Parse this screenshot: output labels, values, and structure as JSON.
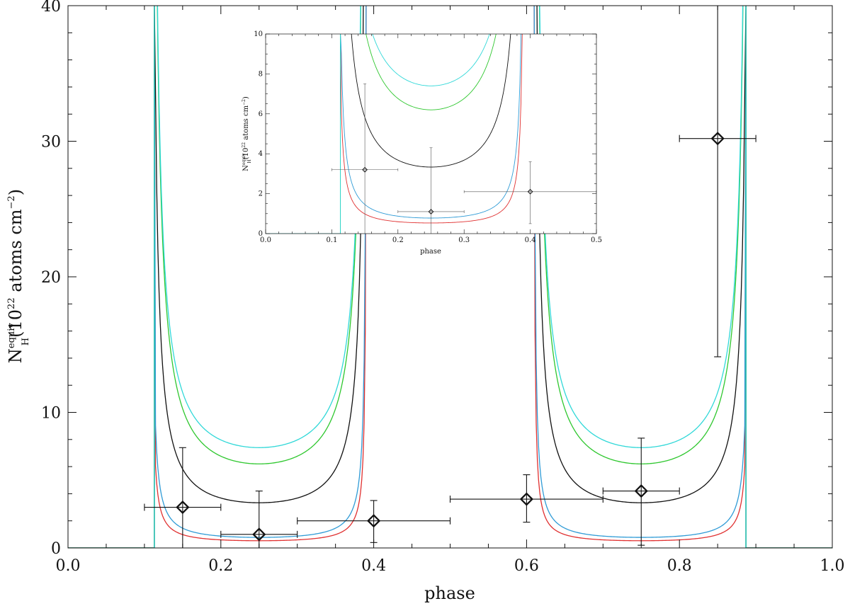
{
  "chart_data": [
    {
      "type": "line",
      "title": "",
      "xlabel": "phase",
      "ylabel_parts": {
        "base": "N",
        "sup": "equiv",
        "sub": "H",
        "text1": "(10",
        "exp": "22",
        "text2": " atoms cm",
        "exp2": "−2",
        "text3": ")"
      },
      "xlim": [
        0.0,
        1.0
      ],
      "ylim": [
        0,
        40
      ],
      "xticks": [
        "0.0",
        "0.2",
        "0.4",
        "0.6",
        "0.8",
        "1.0"
      ],
      "yticks": [
        "0",
        "10",
        "20",
        "30",
        "40"
      ],
      "grid": false,
      "series": [
        {
          "color": "#e03030",
          "base": 0.2,
          "amp": 0.2
        },
        {
          "color": "#2f9bd6",
          "base": 0.28,
          "amp": 0.3
        },
        {
          "color": "#111111",
          "base": 1.5,
          "amp": 1.1
        },
        {
          "color": "#2ec72e",
          "base": 3.2,
          "amp": 1.8
        },
        {
          "color": "#30d8d8",
          "base": 4.4,
          "amp": 1.8
        }
      ],
      "cutoff": [
        0.113,
        0.887
      ],
      "points": [
        {
          "x": 0.15,
          "y": 3.0,
          "xerr": 0.05,
          "ylo": 0.0,
          "yhi": 7.4
        },
        {
          "x": 0.25,
          "y": 1.0,
          "xerr": 0.05,
          "ylo": 0.0,
          "yhi": 4.2
        },
        {
          "x": 0.4,
          "y": 2.0,
          "xerr": 0.1,
          "ylo": 0.4,
          "yhi": 3.5
        },
        {
          "x": 0.6,
          "y": 3.6,
          "xerr": 0.1,
          "ylo": 1.9,
          "yhi": 5.4
        },
        {
          "x": 0.75,
          "y": 4.2,
          "xerr": 0.05,
          "ylo": 0.2,
          "yhi": 8.1
        },
        {
          "x": 0.85,
          "y": 30.2,
          "xerr": 0.05,
          "ylo": 14.1,
          "yhi": 40.0
        }
      ]
    },
    {
      "type": "line",
      "title": "",
      "xlabel": "phase",
      "ylabel_parts": {
        "base": "N",
        "sup": "equiv",
        "sub": "H",
        "text1": "(10",
        "exp": "22",
        "text2": " atoms cm",
        "exp2": "−2",
        "text3": ")"
      },
      "xlim": [
        0.0,
        0.5
      ],
      "ylim": [
        0,
        10
      ],
      "xticks": [
        "0.0",
        "0.1",
        "0.2",
        "0.3",
        "0.4",
        "0.5"
      ],
      "yticks": [
        "0",
        "2",
        "4",
        "6",
        "8",
        "10"
      ],
      "grid": false,
      "series": [
        {
          "color": "#e03030",
          "base": 0.2,
          "amp": 0.2
        },
        {
          "color": "#2f9bd6",
          "base": 0.28,
          "amp": 0.3
        },
        {
          "color": "#111111",
          "base": 1.5,
          "amp": 1.1
        },
        {
          "color": "#2ec72e",
          "base": 3.2,
          "amp": 1.8
        },
        {
          "color": "#30d8d8",
          "base": 4.4,
          "amp": 1.8
        }
      ],
      "cutoff": [
        0.113,
        0.887
      ],
      "points": [
        {
          "x": 0.15,
          "y": 3.2,
          "xerr": 0.05,
          "ylo": 0.0,
          "yhi": 7.5
        },
        {
          "x": 0.25,
          "y": 1.1,
          "xerr": 0.05,
          "ylo": 0.0,
          "yhi": 4.3
        },
        {
          "x": 0.4,
          "y": 2.1,
          "xerr": 0.1,
          "ylo": 0.5,
          "yhi": 3.6
        }
      ]
    }
  ]
}
